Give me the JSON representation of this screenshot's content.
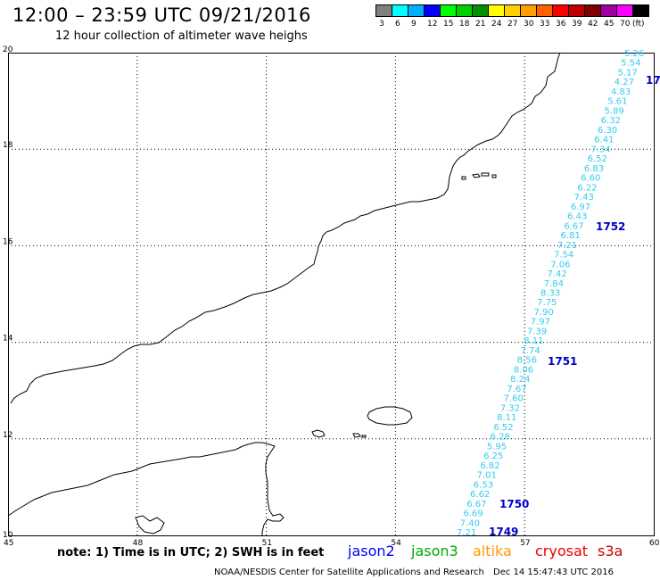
{
  "header": {
    "title": "12:00 – 23:59 UTC 09/21/2016",
    "subtitle": "12 hour collection of altimeter wave heighs"
  },
  "color_scale": {
    "unit_label": "(ft)",
    "bins": [
      {
        "label": "3",
        "color": "#808080"
      },
      {
        "label": "6",
        "color": "#00ffff"
      },
      {
        "label": "9",
        "color": "#00b0ff"
      },
      {
        "label": "12",
        "color": "#0000ff"
      },
      {
        "label": "15",
        "color": "#00ff00"
      },
      {
        "label": "18",
        "color": "#00d000"
      },
      {
        "label": "21",
        "color": "#009000"
      },
      {
        "label": "24",
        "color": "#ffff00"
      },
      {
        "label": "27",
        "color": "#ffd000"
      },
      {
        "label": "30",
        "color": "#ffa000"
      },
      {
        "label": "33",
        "color": "#ff6000"
      },
      {
        "label": "36",
        "color": "#ff0000"
      },
      {
        "label": "39",
        "color": "#c00000"
      },
      {
        "label": "42",
        "color": "#800000"
      },
      {
        "label": "45",
        "color": "#a000a0"
      },
      {
        "label": "70",
        "color": "#ff00ff"
      },
      {
        "label": "",
        "color": "#000000"
      }
    ]
  },
  "map": {
    "lat_ticks": [
      "20",
      "18",
      "16",
      "14",
      "12",
      "10"
    ],
    "lon_ticks": [
      "45",
      "48",
      "51",
      "54",
      "57",
      "60"
    ],
    "track_color": "#33ccee",
    "swh_values": [
      "5.26",
      "5.54",
      "5.17",
      "4.27",
      "4.83",
      "5.61",
      "5.89",
      "6.32",
      "6.30",
      "6.41",
      "7.34",
      "6.52",
      "6.83",
      "6.60",
      "6.22",
      "7.43",
      "6.97",
      "6.43",
      "6.67",
      "6.81",
      "7.21",
      "7.54",
      "7.06",
      "7.42",
      "7.84",
      "8.33",
      "7.75",
      "7.90",
      "7.97",
      "7.39",
      "8.11",
      "7.74",
      "8.56",
      "8.06",
      "8.24",
      "7.67",
      "7.60",
      "7.32",
      "8.11",
      "6.52",
      "6.28",
      "5.95",
      "6.25",
      "6.82",
      "7.01",
      "6.53",
      "6.62",
      "6.67",
      "6.69",
      "7.40",
      "7.21"
    ],
    "time_labels": [
      {
        "text": "17",
        "color": "#0000cc"
      },
      {
        "text": "1752",
        "color": "#0000cc"
      },
      {
        "text": "1751",
        "color": "#0000cc"
      },
      {
        "text": "1750",
        "color": "#0000cc"
      },
      {
        "text": "1749",
        "color": "#0000cc"
      }
    ]
  },
  "footer": {
    "note": "note: 1) Time is in UTC; 2) SWH is in feet",
    "missions": [
      {
        "name": "jason2",
        "color": "#0000ee"
      },
      {
        "name": "jason3",
        "color": "#00aa00"
      },
      {
        "name": "altika",
        "color": "#ff9900"
      },
      {
        "name": "cryosat",
        "color": "#ee0000"
      },
      {
        "name": "s3a",
        "color": "#cc0000"
      }
    ],
    "credit": "NOAA/NESDIS Center for Satellite Applications and Research",
    "timestamp": "Dec 14 15:47:43 UTC 2016"
  }
}
